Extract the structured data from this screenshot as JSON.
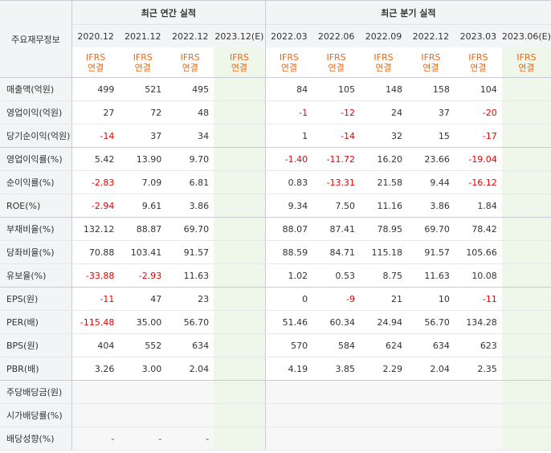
{
  "corner_label": "주요재무정보",
  "annual_title": "최근 연간 실적",
  "quarter_title": "최근 분기 실적",
  "annual_periods": [
    "2020.12",
    "2021.12",
    "2022.12",
    "2023.12(E)"
  ],
  "quarter_periods": [
    "2022.03",
    "2022.06",
    "2022.09",
    "2022.12",
    "2023.03",
    "2023.06(E)"
  ],
  "basis_top": "IFRS",
  "basis_bottom": "연결",
  "rows": [
    {
      "label": "매출액(억원)",
      "values": [
        "499",
        "521",
        "495",
        "",
        "84",
        "105",
        "148",
        "158",
        "104",
        ""
      ]
    },
    {
      "label": "영업이익(억원)",
      "values": [
        "27",
        "72",
        "48",
        "",
        "-1",
        "-12",
        "24",
        "37",
        "-20",
        ""
      ]
    },
    {
      "label": "당기순이익(억원)",
      "values": [
        "-14",
        "37",
        "34",
        "",
        "1",
        "-14",
        "32",
        "15",
        "-17",
        ""
      ]
    },
    {
      "label": "영업이익률(%)",
      "values": [
        "5.42",
        "13.90",
        "9.70",
        "",
        "-1.40",
        "-11.72",
        "16.20",
        "23.66",
        "-19.04",
        ""
      ]
    },
    {
      "label": "순이익률(%)",
      "values": [
        "-2.83",
        "7.09",
        "6.81",
        "",
        "0.83",
        "-13.31",
        "21.58",
        "9.44",
        "-16.12",
        ""
      ]
    },
    {
      "label": "ROE(%)",
      "values": [
        "-2.94",
        "9.61",
        "3.86",
        "",
        "9.34",
        "7.50",
        "11.16",
        "3.86",
        "1.84",
        ""
      ]
    },
    {
      "label": "부채비율(%)",
      "values": [
        "132.12",
        "88.87",
        "69.70",
        "",
        "88.07",
        "87.41",
        "78.95",
        "69.70",
        "78.42",
        ""
      ]
    },
    {
      "label": "당좌비율(%)",
      "values": [
        "70.88",
        "103.41",
        "91.57",
        "",
        "88.59",
        "84.71",
        "115.18",
        "91.57",
        "105.66",
        ""
      ]
    },
    {
      "label": "유보율(%)",
      "values": [
        "-33.88",
        "-2.93",
        "11.63",
        "",
        "1.02",
        "0.53",
        "8.75",
        "11.63",
        "10.08",
        ""
      ]
    },
    {
      "label": "EPS(원)",
      "values": [
        "-11",
        "47",
        "23",
        "",
        "0",
        "-9",
        "21",
        "10",
        "-11",
        ""
      ]
    },
    {
      "label": "PER(배)",
      "values": [
        "-115.48",
        "35.00",
        "56.70",
        "",
        "51.46",
        "60.34",
        "24.94",
        "56.70",
        "134.28",
        ""
      ]
    },
    {
      "label": "BPS(원)",
      "values": [
        "404",
        "552",
        "634",
        "",
        "570",
        "584",
        "624",
        "634",
        "623",
        ""
      ]
    },
    {
      "label": "PBR(배)",
      "values": [
        "3.26",
        "3.00",
        "2.04",
        "",
        "4.19",
        "3.85",
        "2.29",
        "2.04",
        "2.35",
        ""
      ]
    },
    {
      "label": "주당배당금(원)",
      "values": [
        "",
        "",
        "",
        "",
        "",
        "",
        "",
        "",
        "",
        ""
      ]
    },
    {
      "label": "시가배당률(%)",
      "values": [
        "",
        "",
        "",
        "",
        "",
        "",
        "",
        "",
        "",
        ""
      ]
    },
    {
      "label": "배당성향(%)",
      "values": [
        "-",
        "-",
        "-",
        "",
        "",
        "",
        "",
        "",
        "",
        ""
      ]
    }
  ],
  "colors": {
    "negative": "#e60000",
    "basis": "#e86a18",
    "estimate_bg": "#eef7e9",
    "header_bg": "#f2f4f6"
  }
}
